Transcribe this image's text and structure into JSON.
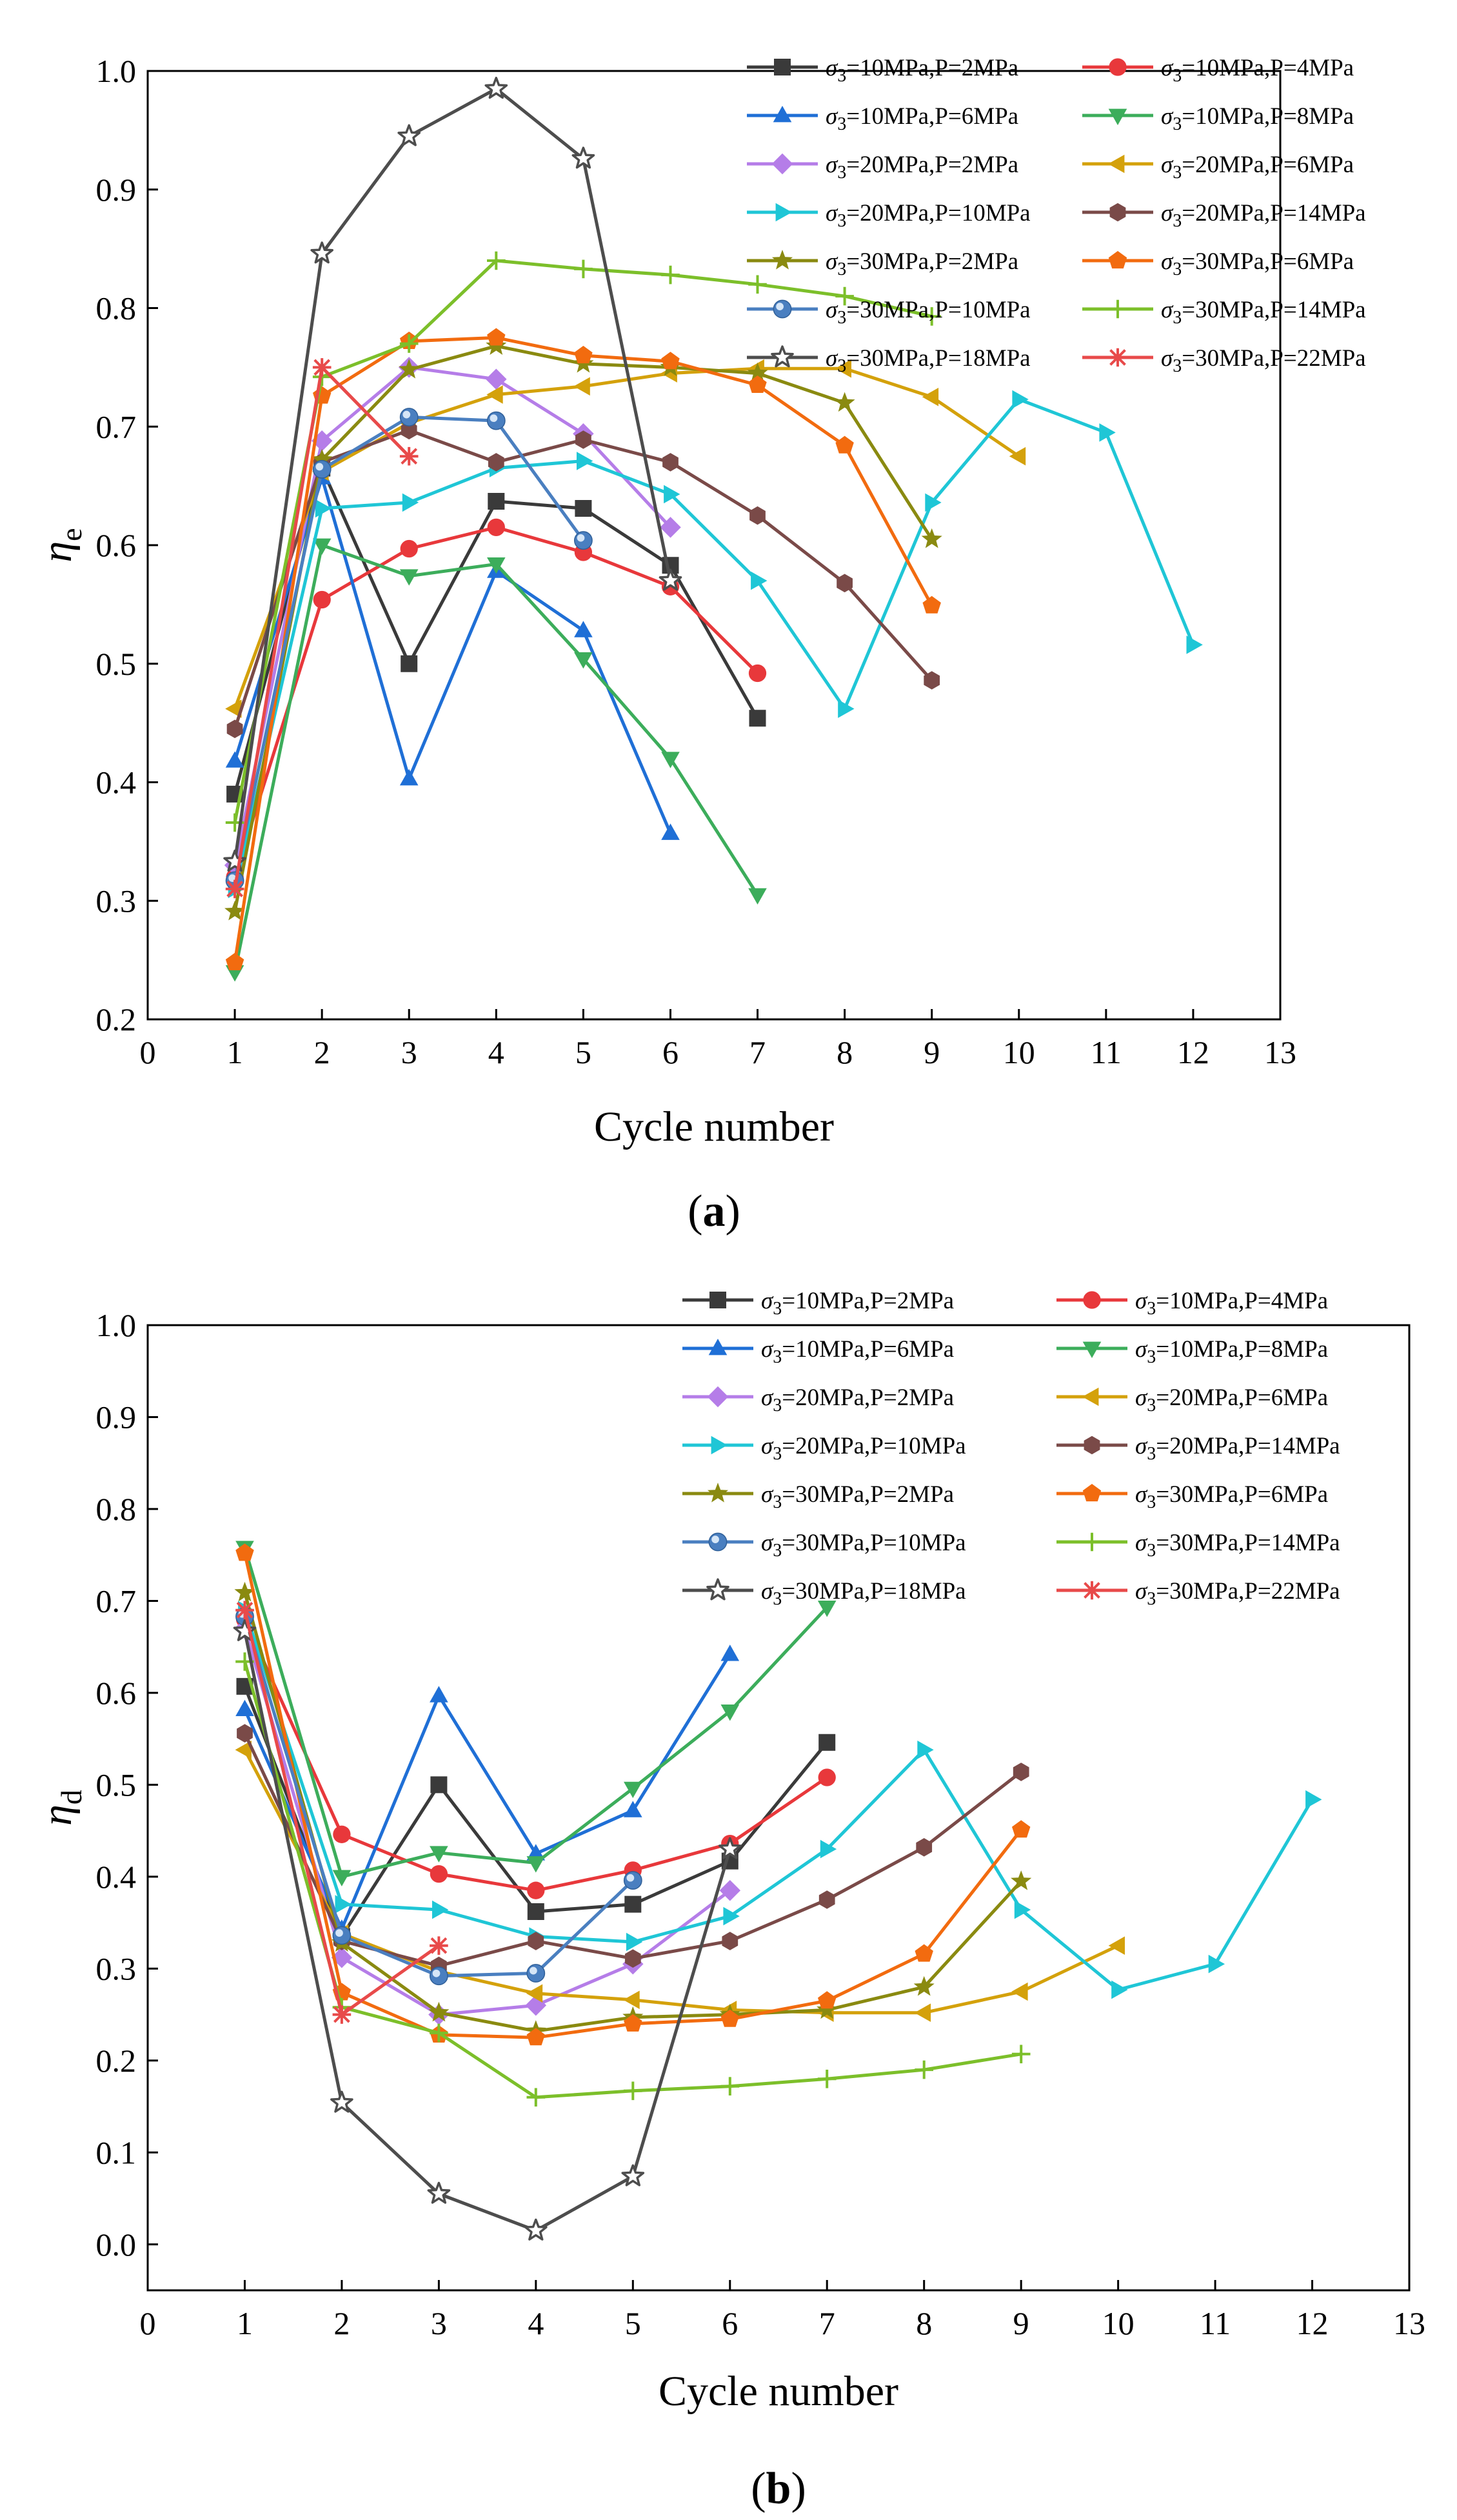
{
  "chart_data": [
    {
      "type": "line",
      "panel_label": "a",
      "title": "",
      "xlabel": "Cycle number",
      "ylabel": "η_e",
      "ylabel_main": "η",
      "ylabel_sub": "e",
      "xlim": [
        0,
        13
      ],
      "ylim": [
        0.2,
        1.0
      ],
      "xticks": [
        "0",
        "1",
        "2",
        "3",
        "4",
        "5",
        "6",
        "7",
        "8",
        "9",
        "10",
        "11",
        "12",
        "13"
      ],
      "yticks": [
        "0.2",
        "0.3",
        "0.4",
        "0.5",
        "0.6",
        "0.7",
        "0.8",
        "0.9",
        "1.0"
      ],
      "legend_position": "top-right",
      "series": [
        {
          "name": "σ3=10MPa,P=2MPa",
          "sigma": "σ",
          "sub": "3",
          "rest": "=10MPa,P=2MPa",
          "color": "#3a3a3a",
          "marker": "square",
          "x": [
            1,
            2,
            3,
            4,
            5,
            6,
            7
          ],
          "values": [
            0.39,
            0.665,
            0.5,
            0.637,
            0.631,
            0.583,
            0.454
          ]
        },
        {
          "name": "σ3=10MPa,P=4MPa",
          "sigma": "σ",
          "sub": "3",
          "rest": "=10MPa,P=4MPa",
          "color": "#e8383b",
          "marker": "circle",
          "x": [
            1,
            2,
            3,
            4,
            5,
            6,
            7
          ],
          "values": [
            0.32,
            0.554,
            0.597,
            0.615,
            0.594,
            0.565,
            0.492
          ]
        },
        {
          "name": "σ3=10MPa,P=6MPa",
          "sigma": "σ",
          "sub": "3",
          "rest": "=10MPa,P=6MPa",
          "color": "#1f6fd6",
          "marker": "triangle-up",
          "x": [
            1,
            2,
            3,
            4,
            5,
            6
          ],
          "values": [
            0.418,
            0.657,
            0.403,
            0.578,
            0.528,
            0.357
          ]
        },
        {
          "name": "σ3=10MPa,P=8MPa",
          "sigma": "σ",
          "sub": "3",
          "rest": "=10MPa,P=8MPa",
          "color": "#3cad5b",
          "marker": "triangle-down",
          "x": [
            1,
            2,
            3,
            4,
            5,
            6,
            7
          ],
          "values": [
            0.24,
            0.6,
            0.574,
            0.584,
            0.504,
            0.42,
            0.305
          ]
        },
        {
          "name": "σ3=20MPa,P=2MPa",
          "sigma": "σ",
          "sub": "3",
          "rest": "=20MPa,P=2MPa",
          "color": "#b57de8",
          "marker": "diamond",
          "x": [
            1,
            2,
            3,
            4,
            5,
            6
          ],
          "values": [
            0.33,
            0.688,
            0.75,
            0.74,
            0.694,
            0.615
          ]
        },
        {
          "name": "σ3=20MPa,P=6MPa",
          "sigma": "σ",
          "sub": "3",
          "rest": "=20MPa,P=6MPa",
          "color": "#d4a10b",
          "marker": "triangle-left",
          "x": [
            1,
            2,
            3,
            4,
            5,
            6,
            7,
            8,
            9,
            10
          ],
          "values": [
            0.462,
            0.662,
            0.703,
            0.727,
            0.734,
            0.745,
            0.749,
            0.749,
            0.725,
            0.675
          ]
        },
        {
          "name": "σ3=20MPa,P=10MPa",
          "sigma": "σ",
          "sub": "3",
          "rest": "=20MPa,P=10MPa",
          "color": "#1fc6d6",
          "marker": "triangle-right",
          "x": [
            1,
            2,
            3,
            4,
            5,
            6,
            7,
            8,
            9,
            10,
            11,
            12
          ],
          "values": [
            0.31,
            0.631,
            0.636,
            0.665,
            0.671,
            0.643,
            0.57,
            0.462,
            0.636,
            0.723,
            0.695,
            0.516
          ]
        },
        {
          "name": "σ3=20MPa,P=14MPa",
          "sigma": "σ",
          "sub": "3",
          "rest": "=20MPa,P=14MPa",
          "color": "#7a4a48",
          "marker": "hexagon",
          "x": [
            1,
            2,
            3,
            4,
            5,
            6,
            7,
            8,
            9
          ],
          "values": [
            0.445,
            0.67,
            0.697,
            0.67,
            0.689,
            0.67,
            0.625,
            0.568,
            0.486
          ]
        },
        {
          "name": "σ3=30MPa,P=2MPa",
          "sigma": "σ",
          "sub": "3",
          "rest": "=30MPa,P=2MPa",
          "color": "#8a8a10",
          "marker": "star",
          "x": [
            1,
            2,
            3,
            4,
            5,
            6,
            7,
            8,
            9
          ],
          "values": [
            0.291,
            0.672,
            0.748,
            0.768,
            0.753,
            0.75,
            0.745,
            0.72,
            0.605
          ]
        },
        {
          "name": "σ3=30MPa,P=6MPa",
          "sigma": "σ",
          "sub": "3",
          "rest": "=30MPa,P=6MPa",
          "color": "#f26b0f",
          "marker": "pentagon",
          "x": [
            1,
            2,
            3,
            4,
            5,
            6,
            7,
            8,
            9
          ],
          "values": [
            0.248,
            0.726,
            0.772,
            0.775,
            0.76,
            0.755,
            0.735,
            0.684,
            0.549
          ]
        },
        {
          "name": "σ3=30MPa,P=10MPa",
          "sigma": "σ",
          "sub": "3",
          "rest": "=30MPa,P=10MPa",
          "color": "#4a7fc0",
          "marker": "sphere",
          "x": [
            1,
            2,
            3,
            4,
            5
          ],
          "values": [
            0.317,
            0.664,
            0.708,
            0.705,
            0.604
          ]
        },
        {
          "name": "σ3=30MPa,P=14MPa",
          "sigma": "σ",
          "sub": "3",
          "rest": "=30MPa,P=14MPa",
          "color": "#7cbf2a",
          "marker": "plus",
          "x": [
            1,
            2,
            3,
            4,
            5,
            6,
            7,
            8,
            9
          ],
          "values": [
            0.366,
            0.742,
            0.77,
            0.84,
            0.833,
            0.828,
            0.82,
            0.81,
            0.793
          ]
        },
        {
          "name": "σ3=30MPa,P=18MPa",
          "sigma": "σ",
          "sub": "3",
          "rest": "=30MPa,P=18MPa",
          "color": "#4d4d4d",
          "marker": "hollow-star",
          "x": [
            1,
            2,
            3,
            4,
            5,
            6
          ],
          "values": [
            0.333,
            0.846,
            0.945,
            0.985,
            0.926,
            0.57
          ]
        },
        {
          "name": "σ3=30MPa,P=22MPa",
          "sigma": "σ",
          "sub": "3",
          "rest": "=30MPa,P=22MPa",
          "color": "#e84a4a",
          "marker": "asterisk",
          "x": [
            1,
            2,
            3
          ],
          "values": [
            0.31,
            0.75,
            0.675
          ]
        }
      ]
    },
    {
      "type": "line",
      "panel_label": "b",
      "title": "",
      "xlabel": "Cycle number",
      "ylabel": "η_d",
      "ylabel_main": "η",
      "ylabel_sub": "d",
      "xlim": [
        0,
        13
      ],
      "ylim": [
        -0.05,
        1.0
      ],
      "xticks": [
        "0",
        "1",
        "2",
        "3",
        "4",
        "5",
        "6",
        "7",
        "8",
        "9",
        "10",
        "11",
        "12",
        "13"
      ],
      "yticks": [
        "0.0",
        "0.1",
        "0.2",
        "0.3",
        "0.4",
        "0.5",
        "0.6",
        "0.7",
        "0.8",
        "0.9",
        "1.0"
      ],
      "legend_position": "top-right",
      "series": [
        {
          "name": "σ3=10MPa,P=2MPa",
          "sigma": "σ",
          "sub": "3",
          "rest": "=10MPa,P=2MPa",
          "color": "#3a3a3a",
          "marker": "square",
          "x": [
            1,
            2,
            3,
            4,
            5,
            6,
            7
          ],
          "values": [
            0.607,
            0.335,
            0.5,
            0.362,
            0.37,
            0.417,
            0.546
          ]
        },
        {
          "name": "σ3=10MPa,P=4MPa",
          "sigma": "σ",
          "sub": "3",
          "rest": "=10MPa,P=4MPa",
          "color": "#e8383b",
          "marker": "circle",
          "x": [
            1,
            2,
            3,
            4,
            5,
            6,
            7
          ],
          "values": [
            0.68,
            0.446,
            0.403,
            0.385,
            0.407,
            0.436,
            0.508
          ]
        },
        {
          "name": "σ3=10MPa,P=6MPa",
          "sigma": "σ",
          "sub": "3",
          "rest": "=10MPa,P=6MPa",
          "color": "#1f6fd6",
          "marker": "triangle-up",
          "x": [
            1,
            2,
            3,
            4,
            5,
            6
          ],
          "values": [
            0.582,
            0.343,
            0.597,
            0.425,
            0.472,
            0.642
          ]
        },
        {
          "name": "σ3=10MPa,P=8MPa",
          "sigma": "σ",
          "sub": "3",
          "rest": "=10MPa,P=8MPa",
          "color": "#3cad5b",
          "marker": "triangle-down",
          "x": [
            1,
            2,
            3,
            4,
            5,
            6,
            7
          ],
          "values": [
            0.758,
            0.4,
            0.426,
            0.415,
            0.496,
            0.58,
            0.693
          ]
        },
        {
          "name": "σ3=20MPa,P=2MPa",
          "sigma": "σ",
          "sub": "3",
          "rest": "=20MPa,P=2MPa",
          "color": "#b57de8",
          "marker": "diamond",
          "x": [
            1,
            2,
            3,
            4,
            5,
            6
          ],
          "values": [
            0.67,
            0.312,
            0.25,
            0.26,
            0.305,
            0.385
          ]
        },
        {
          "name": "σ3=20MPa,P=6MPa",
          "sigma": "σ",
          "sub": "3",
          "rest": "=20MPa,P=6MPa",
          "color": "#d4a10b",
          "marker": "triangle-left",
          "x": [
            1,
            2,
            3,
            4,
            5,
            6,
            7,
            8,
            9,
            10
          ],
          "values": [
            0.538,
            0.338,
            0.297,
            0.273,
            0.266,
            0.255,
            0.252,
            0.252,
            0.275,
            0.325
          ]
        },
        {
          "name": "σ3=20MPa,P=10MPa",
          "sigma": "σ",
          "sub": "3",
          "rest": "=20MPa,P=10MPa",
          "color": "#1fc6d6",
          "marker": "triangle-right",
          "x": [
            1,
            2,
            3,
            4,
            5,
            6,
            7,
            8,
            9,
            10,
            11,
            12
          ],
          "values": [
            0.69,
            0.37,
            0.364,
            0.335,
            0.329,
            0.357,
            0.43,
            0.538,
            0.364,
            0.277,
            0.305,
            0.484
          ]
        },
        {
          "name": "σ3=20MPa,P=14MPa",
          "sigma": "σ",
          "sub": "3",
          "rest": "=20MPa,P=14MPa",
          "color": "#7a4a48",
          "marker": "hexagon",
          "x": [
            1,
            2,
            3,
            4,
            5,
            6,
            7,
            8,
            9
          ],
          "values": [
            0.556,
            0.33,
            0.303,
            0.33,
            0.311,
            0.33,
            0.375,
            0.432,
            0.514
          ]
        },
        {
          "name": "σ3=30MPa,P=2MPa",
          "sigma": "σ",
          "sub": "3",
          "rest": "=30MPa,P=2MPa",
          "color": "#8a8a10",
          "marker": "star",
          "x": [
            1,
            2,
            3,
            4,
            5,
            6,
            7,
            8,
            9
          ],
          "values": [
            0.709,
            0.328,
            0.252,
            0.232,
            0.247,
            0.25,
            0.255,
            0.28,
            0.395
          ]
        },
        {
          "name": "σ3=30MPa,P=6MPa",
          "sigma": "σ",
          "sub": "3",
          "rest": "=30MPa,P=6MPa",
          "color": "#f26b0f",
          "marker": "pentagon",
          "x": [
            1,
            2,
            3,
            4,
            5,
            6,
            7,
            8,
            9
          ],
          "values": [
            0.752,
            0.274,
            0.228,
            0.225,
            0.24,
            0.245,
            0.265,
            0.316,
            0.451
          ]
        },
        {
          "name": "σ3=30MPa,P=10MPa",
          "sigma": "σ",
          "sub": "3",
          "rest": "=30MPa,P=10MPa",
          "color": "#4a7fc0",
          "marker": "sphere",
          "x": [
            1,
            2,
            3,
            4,
            5
          ],
          "values": [
            0.683,
            0.336,
            0.292,
            0.295,
            0.396
          ]
        },
        {
          "name": "σ3=30MPa,P=14MPa",
          "sigma": "σ",
          "sub": "3",
          "rest": "=30MPa,P=14MPa",
          "color": "#7cbf2a",
          "marker": "plus",
          "x": [
            1,
            2,
            3,
            4,
            5,
            6,
            7,
            8,
            9
          ],
          "values": [
            0.634,
            0.258,
            0.23,
            0.16,
            0.167,
            0.172,
            0.18,
            0.19,
            0.207
          ]
        },
        {
          "name": "σ3=30MPa,P=18MPa",
          "sigma": "σ",
          "sub": "3",
          "rest": "=30MPa,P=18MPa",
          "color": "#4d4d4d",
          "marker": "hollow-star",
          "x": [
            1,
            2,
            3,
            4,
            5,
            6
          ],
          "values": [
            0.667,
            0.154,
            0.055,
            0.015,
            0.074,
            0.43
          ]
        },
        {
          "name": "σ3=30MPa,P=22MPa",
          "sigma": "σ",
          "sub": "3",
          "rest": "=30MPa,P=22MPa",
          "color": "#e84a4a",
          "marker": "asterisk",
          "x": [
            1,
            2,
            3
          ],
          "values": [
            0.69,
            0.25,
            0.325
          ]
        }
      ]
    }
  ]
}
